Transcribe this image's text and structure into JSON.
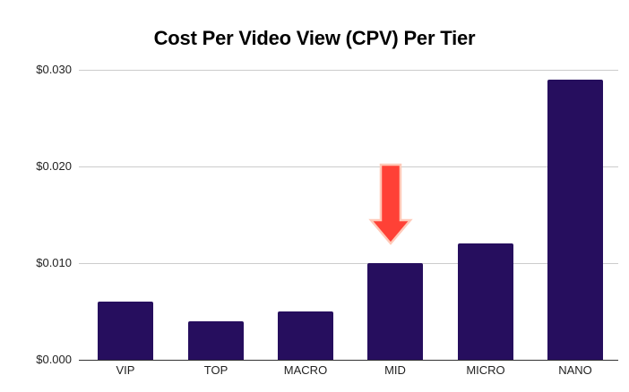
{
  "chart_data": {
    "type": "bar",
    "title": "Cost Per Video View (CPV) Per Tier",
    "xlabel": "",
    "ylabel": "",
    "categories": [
      "VIP",
      "TOP",
      "MACRO",
      "MID",
      "MICRO",
      "NANO"
    ],
    "values": [
      0.006,
      0.004,
      0.005,
      0.01,
      0.012,
      0.029
    ],
    "ylim": [
      0,
      0.03
    ],
    "yticks": [
      0.0,
      0.01,
      0.02,
      0.03
    ],
    "ytick_labels": [
      "$0.000",
      "$0.010",
      "$0.020",
      "$0.030"
    ],
    "grid": true,
    "legend": "none",
    "bar_color": "#260e5e",
    "annotations": [
      {
        "type": "arrow",
        "direction": "down",
        "target": "MID",
        "color": "#ff4136"
      }
    ]
  }
}
